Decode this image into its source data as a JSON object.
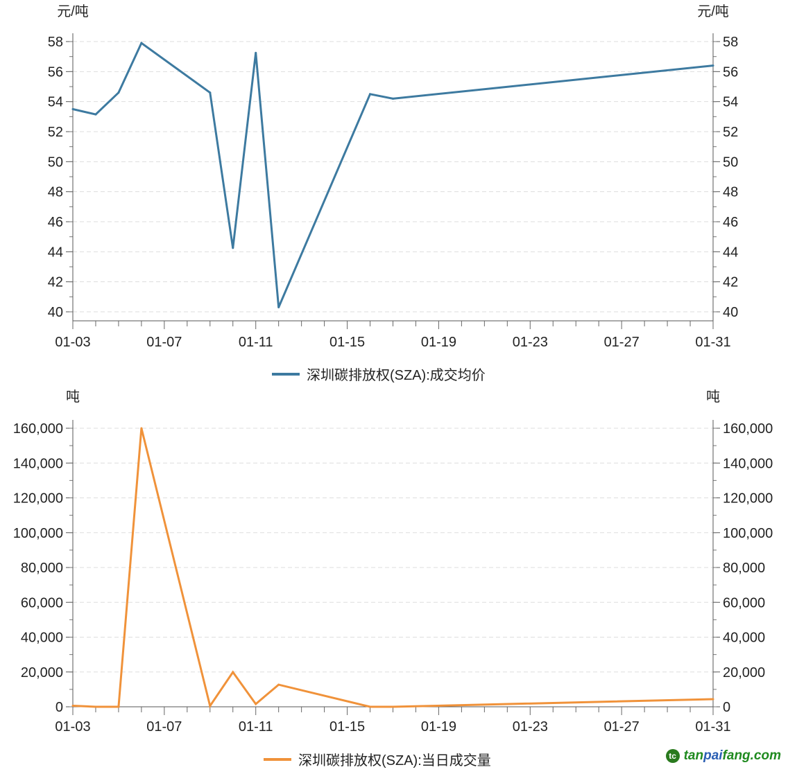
{
  "chart_data": [
    {
      "type": "line",
      "x": [
        "01-03",
        "01-04",
        "01-05",
        "01-06",
        "01-09",
        "01-10",
        "01-11",
        "01-12",
        "01-16",
        "01-17",
        "01-31"
      ],
      "series": [
        {
          "name": "深圳碳排放权(SZA):成交均价",
          "color": "#3d7aa0",
          "values": [
            53.5,
            53.15,
            54.6,
            57.9,
            54.6,
            44.25,
            57.25,
            40.3,
            54.5,
            54.2,
            56.4
          ]
        }
      ],
      "x_tick_labels": [
        "01-03",
        "01-07",
        "01-11",
        "01-15",
        "01-19",
        "01-23",
        "01-27",
        "01-31"
      ],
      "y_tick_labels": [
        "40",
        "42",
        "44",
        "46",
        "48",
        "50",
        "52",
        "54",
        "56",
        "58"
      ],
      "ylim": [
        40,
        58
      ],
      "yunit_left": "元/吨",
      "yunit_right": "元/吨",
      "grid": true,
      "legend_position": "bottom"
    },
    {
      "type": "line",
      "x": [
        "01-03",
        "01-04",
        "01-05",
        "01-06",
        "01-09",
        "01-10",
        "01-11",
        "01-12",
        "01-16",
        "01-17",
        "01-31"
      ],
      "series": [
        {
          "name": "深圳碳排放权(SZA):当日成交量",
          "color": "#f0923a",
          "values": [
            600,
            0,
            0,
            160000,
            500,
            19900,
            1600,
            12700,
            0,
            0,
            4400
          ]
        }
      ],
      "x_tick_labels": [
        "01-03",
        "01-07",
        "01-11",
        "01-15",
        "01-19",
        "01-23",
        "01-27",
        "01-31"
      ],
      "y_tick_labels": [
        "0",
        "20,000",
        "40,000",
        "60,000",
        "80,000",
        "100,000",
        "120,000",
        "140,000",
        "160,000"
      ],
      "ylim": [
        0,
        160000
      ],
      "yunit_left": "吨",
      "yunit_right": "吨",
      "grid": true,
      "legend_position": "bottom"
    }
  ],
  "watermark": {
    "part1": "tan",
    "part2": "pai",
    "part3": "fang.com",
    "color_green": "#1f8a1f",
    "color_blue": "#2b5fb3"
  }
}
